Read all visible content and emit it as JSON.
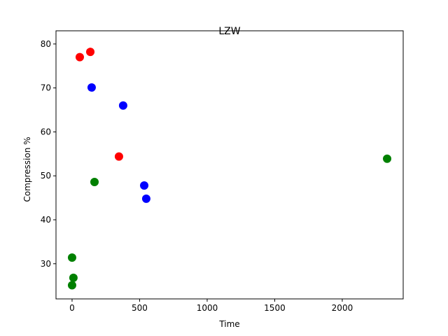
{
  "chart_data": {
    "type": "scatter",
    "title": "LZW",
    "x_label": "Time",
    "y_label": "Compression %",
    "xlim": [
      -119,
      2451
    ],
    "ylim": [
      22.0,
      83.0
    ],
    "xticks": [
      0,
      500,
      1000,
      1500,
      2000
    ],
    "yticks": [
      30,
      40,
      50,
      60,
      70,
      80
    ],
    "series": [
      {
        "color": "#ff0000",
        "x": [
          57,
          135,
          347
        ],
        "values": [
          77.0,
          78.2,
          54.4
        ]
      },
      {
        "color": "#0000ff",
        "x": [
          145,
          378,
          534,
          549
        ],
        "values": [
          70.1,
          66.0,
          47.8,
          44.8
        ]
      },
      {
        "color": "#008000",
        "x": [
          0,
          10,
          0,
          166,
          2332
        ],
        "values": [
          31.4,
          26.8,
          25.1,
          48.6,
          53.9
        ]
      }
    ]
  }
}
